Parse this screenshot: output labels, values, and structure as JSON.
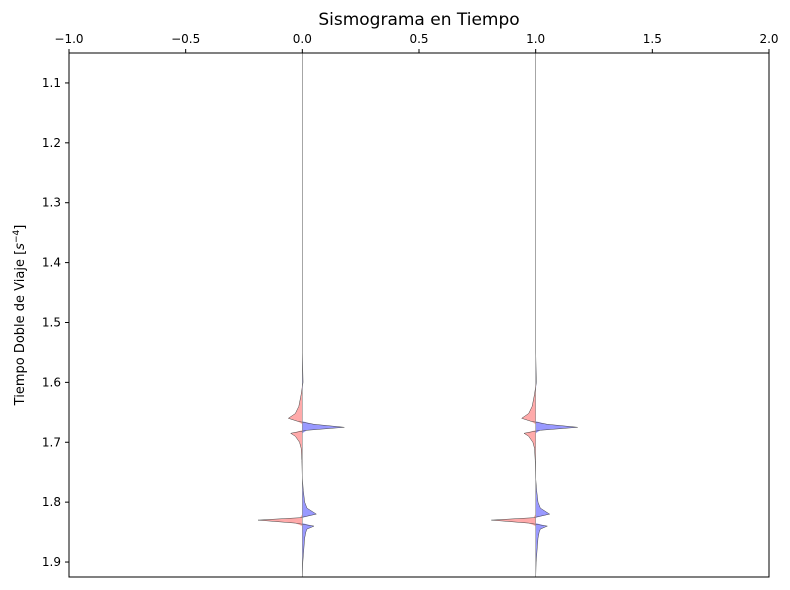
{
  "chart_data": {
    "type": "area",
    "title": "Sismograma en Tiempo",
    "xlabel": "",
    "ylabel": "Tiempo Doble de Viaje [s⁻⁴]",
    "ylabel_main": "Tiempo Doble de Viaje [",
    "ylabel_var": "s",
    "ylabel_sup": "−4",
    "ylabel_end": "]",
    "x_axis_position": "top",
    "y_inverted": true,
    "xlim": [
      -1.0,
      2.0
    ],
    "ylim": [
      1.05,
      1.925
    ],
    "grid": false,
    "xticks": [
      -1.0,
      -0.5,
      0.0,
      0.5,
      1.0,
      1.5,
      2.0
    ],
    "xtick_labels": [
      "−1.0",
      "−0.5",
      "0.0",
      "0.5",
      "1.0",
      "1.5",
      "2.0"
    ],
    "yticks": [
      1.1,
      1.2,
      1.3,
      1.4,
      1.5,
      1.6,
      1.7,
      1.8,
      1.9
    ],
    "ytick_labels": [
      "1.1",
      "1.2",
      "1.3",
      "1.4",
      "1.5",
      "1.6",
      "1.7",
      "1.8",
      "1.9"
    ],
    "positive_fill_color": "#9999ff",
    "negative_fill_color": "#ffaaaa",
    "trace_line_color": "#888888",
    "traces": [
      {
        "offset": 0.0,
        "t": [
          1.05,
          1.55,
          1.6,
          1.62,
          1.64,
          1.652,
          1.66,
          1.665,
          1.67,
          1.675,
          1.68,
          1.685,
          1.69,
          1.7,
          1.71,
          1.73,
          1.76,
          1.78,
          1.8,
          1.81,
          1.82,
          1.826,
          1.83,
          1.835,
          1.84,
          1.845,
          1.85,
          1.86,
          1.88,
          1.9,
          1.925
        ],
        "amp": [
          0.0,
          0.0,
          0.003,
          -0.005,
          -0.015,
          -0.03,
          -0.06,
          -0.02,
          0.05,
          0.18,
          0.02,
          -0.05,
          -0.03,
          -0.012,
          -0.005,
          -0.002,
          0.0,
          0.004,
          0.01,
          0.02,
          0.06,
          -0.01,
          -0.19,
          -0.03,
          0.05,
          0.02,
          0.015,
          0.01,
          0.006,
          0.002,
          0.0
        ]
      },
      {
        "offset": 1.0,
        "t": [
          1.05,
          1.55,
          1.6,
          1.62,
          1.64,
          1.652,
          1.66,
          1.665,
          1.67,
          1.675,
          1.68,
          1.685,
          1.69,
          1.7,
          1.71,
          1.73,
          1.76,
          1.78,
          1.8,
          1.81,
          1.82,
          1.826,
          1.83,
          1.835,
          1.84,
          1.845,
          1.85,
          1.86,
          1.88,
          1.9,
          1.925
        ],
        "amp": [
          0.0,
          0.0,
          0.003,
          -0.005,
          -0.015,
          -0.03,
          -0.06,
          -0.02,
          0.05,
          0.18,
          0.02,
          -0.05,
          -0.03,
          -0.012,
          -0.005,
          -0.002,
          0.0,
          0.004,
          0.01,
          0.02,
          0.06,
          -0.01,
          -0.19,
          -0.03,
          0.05,
          0.02,
          0.015,
          0.01,
          0.006,
          0.002,
          0.0
        ]
      }
    ]
  }
}
